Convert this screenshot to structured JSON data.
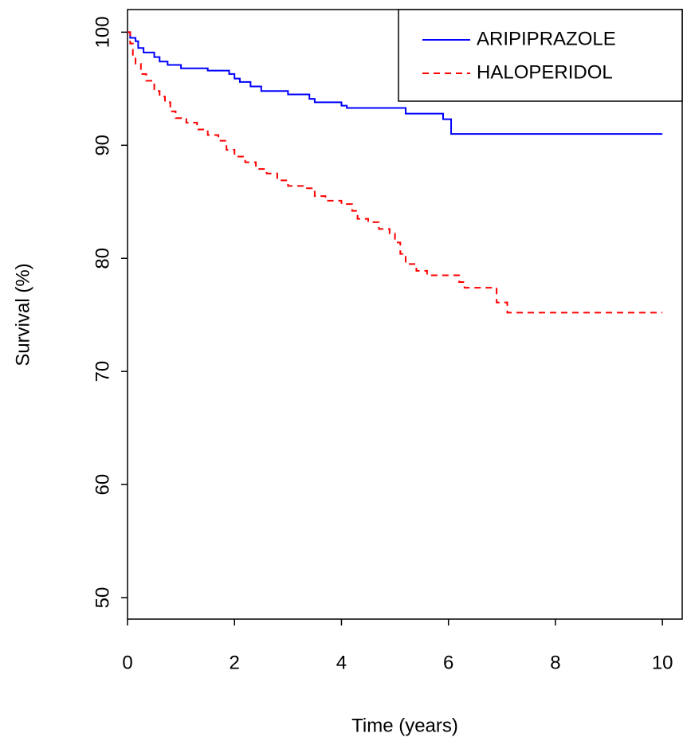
{
  "chart_data": {
    "type": "line",
    "drawstyle": "steps-post",
    "xlabel": "Time (years)",
    "ylabel": "Survival (%)",
    "xlim": [
      0,
      10.37
    ],
    "ylim": [
      48.1,
      102
    ],
    "xticks": [
      0,
      2,
      4,
      6,
      8,
      10
    ],
    "yticks": [
      50,
      60,
      70,
      80,
      90,
      100
    ],
    "legend": "topright",
    "series": [
      {
        "name": "ARIPIPRAZOLE",
        "color": "#0000ff",
        "dash": "solid",
        "x": [
          0,
          0.05,
          0.15,
          0.2,
          0.3,
          0.5,
          0.6,
          0.75,
          1.0,
          1.5,
          1.9,
          2.0,
          2.1,
          2.3,
          2.5,
          3.0,
          3.4,
          3.5,
          4.0,
          4.1,
          5.2,
          5.9,
          6.05,
          10
        ],
        "values": [
          100,
          99.5,
          99.2,
          98.6,
          98.2,
          97.8,
          97.4,
          97.1,
          96.8,
          96.6,
          96.3,
          95.9,
          95.6,
          95.2,
          94.8,
          94.5,
          94.1,
          93.8,
          93.5,
          93.3,
          92.8,
          92.3,
          91.0,
          91.0
        ]
      },
      {
        "name": "HALOPERIDOL",
        "color": "#ff0000",
        "dash": "dashed",
        "x": [
          0,
          0.05,
          0.1,
          0.15,
          0.25,
          0.35,
          0.5,
          0.6,
          0.7,
          0.8,
          0.9,
          1.1,
          1.3,
          1.5,
          1.7,
          1.85,
          2.0,
          2.2,
          2.4,
          2.6,
          2.8,
          3.0,
          3.3,
          3.5,
          3.7,
          4.0,
          4.2,
          4.3,
          4.5,
          4.7,
          4.9,
          5.0,
          5.1,
          5.2,
          5.4,
          5.6,
          6.2,
          6.3,
          6.9,
          7.1,
          10
        ],
        "values": [
          100,
          99,
          98,
          97.2,
          96.3,
          95.7,
          94.8,
          94.3,
          93.8,
          93.0,
          92.4,
          92.0,
          91.4,
          90.9,
          90.4,
          89.6,
          89.0,
          88.5,
          87.9,
          87.5,
          86.9,
          86.4,
          86.2,
          85.5,
          85.1,
          84.8,
          84.2,
          83.5,
          83.2,
          82.6,
          82.2,
          81.4,
          80.4,
          79.5,
          78.9,
          78.5,
          77.9,
          77.4,
          76.1,
          75.2,
          75.2
        ]
      }
    ]
  }
}
